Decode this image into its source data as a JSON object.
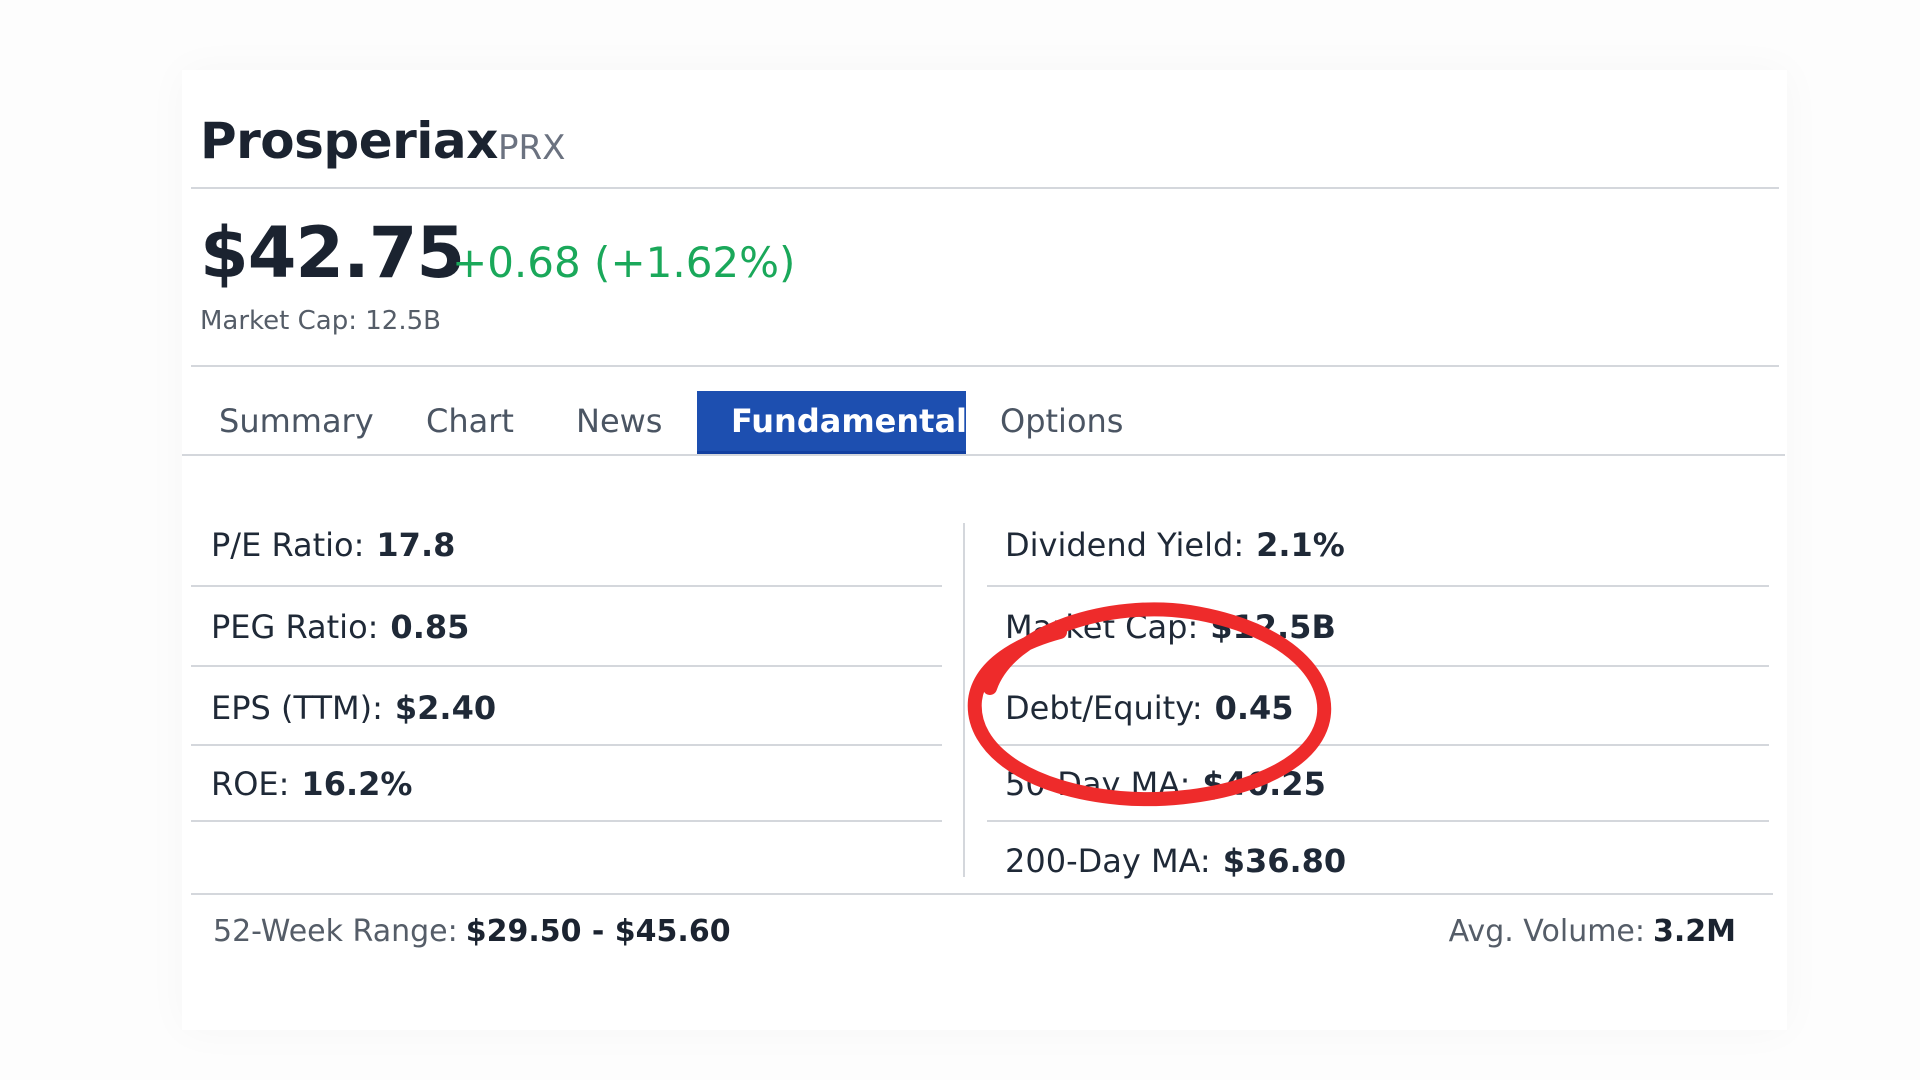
{
  "header": {
    "company_name": "Prosperiax",
    "ticker": "PRX"
  },
  "quote": {
    "price": "$42.75",
    "change": "+0.68 (+1.62%)",
    "market_cap": "Market Cap: 12.5B",
    "change_color": "#1aa85a"
  },
  "tabs": [
    {
      "label": "Summary",
      "active": false
    },
    {
      "label": "Chart",
      "active": false
    },
    {
      "label": "News",
      "active": false
    },
    {
      "label": "Fundamentals",
      "active": true
    },
    {
      "label": "Options",
      "active": false
    }
  ],
  "fundamentals": {
    "left": [
      {
        "label": "P/E Ratio:",
        "value": "17.8"
      },
      {
        "label": "PEG Ratio:",
        "value": "0.85"
      },
      {
        "label": "EPS (TTM):",
        "value": "$2.40"
      },
      {
        "label": "ROE:",
        "value": "16.2%"
      }
    ],
    "right": [
      {
        "label": "Dividend Yield:",
        "value": "2.1%"
      },
      {
        "label": "Market Cap:",
        "value": "$12.5B"
      },
      {
        "label": "Debt/Equity:",
        "value": "0.45"
      },
      {
        "label": "50-Day MA:",
        "value": "$40.25"
      },
      {
        "label": "200-Day MA:",
        "value": "$36.80"
      }
    ]
  },
  "footer": {
    "range_label": "52-Week Range:",
    "range_value": "$29.50 - $45.60",
    "volume_label": "Avg. Volume:",
    "volume_value": "3.2M"
  },
  "annotation": {
    "type": "hand-drawn circle",
    "target": "Debt/Equity",
    "color": "#ee2b2b"
  },
  "colors": {
    "accent": "#1d4fb0"
  }
}
